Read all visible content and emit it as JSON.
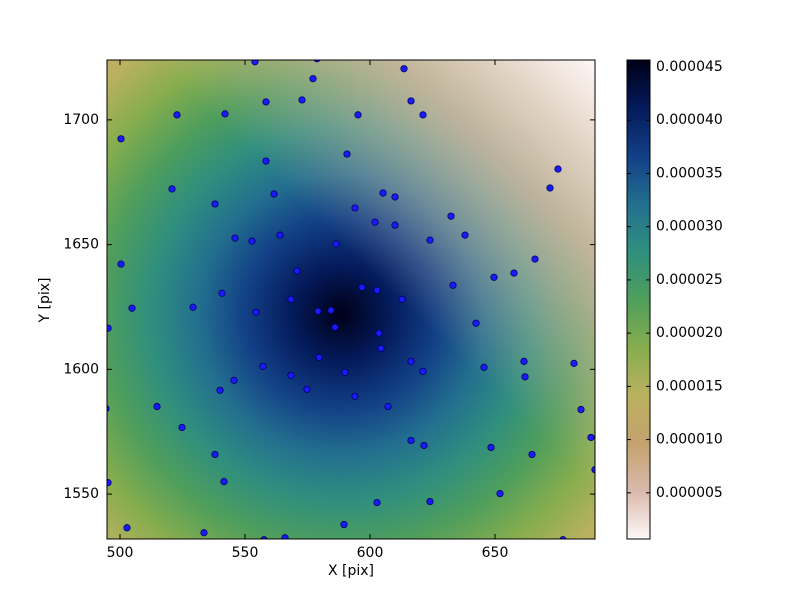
{
  "chart_data": {
    "type": "scatter",
    "x_label": "X [pix]",
    "y_label": "Y [pix]",
    "color": "#1a1aff",
    "edge_color": "#000060",
    "xlim": [
      494.8,
      690
    ],
    "ylim": [
      1532,
      1724
    ],
    "xticks": [
      500,
      550,
      600,
      650
    ],
    "yticks": [
      1550,
      1600,
      1650,
      1700
    ],
    "x": [
      554,
      578.8,
      613.6,
      577.2,
      558.4,
      572.8,
      616.4,
      522.8,
      542,
      595.2,
      621.2,
      500.4,
      590.8,
      558.4,
      675.2,
      520.8,
      672,
      605.2,
      561.6,
      610,
      538,
      594,
      632.4,
      602,
      610,
      564,
      638,
      546,
      624,
      552.8,
      586.4,
      500.4,
      666,
      570.8,
      657.6,
      649.6,
      596.8,
      633.2,
      602.8,
      540.8,
      568.4,
      612.8,
      504.8,
      529.2,
      584.4,
      579.2,
      554.4,
      642.4,
      495.2,
      586,
      603.6,
      604.4,
      579.6,
      616.4,
      661.6,
      681.6,
      557.2,
      645.6,
      621.2,
      590,
      568.4,
      662,
      545.6,
      574.8,
      540,
      594,
      494.4,
      514.8,
      607.2,
      684.4,
      524.8,
      688.4,
      616.4,
      621.6,
      648.4,
      538,
      664.8,
      690,
      495.2,
      541.6,
      652,
      624,
      602.8,
      589.6,
      502.8,
      533.6,
      557.6,
      566,
      677.2
    ],
    "values": [
      1723.3,
      1724.5,
      1720.5,
      1716.5,
      1707.2,
      1708,
      1707.6,
      1702,
      1702.4,
      1702,
      1702,
      1692.4,
      1686.3,
      1683.5,
      1680.3,
      1672.3,
      1672.7,
      1670.7,
      1670.3,
      1669.1,
      1666.3,
      1664.7,
      1661.4,
      1659,
      1657.8,
      1653.8,
      1653.8,
      1652.6,
      1651.8,
      1651.4,
      1650.2,
      1642.2,
      1644.2,
      1639.4,
      1638.6,
      1636.9,
      1632.9,
      1633.7,
      1631.7,
      1630.5,
      1628.1,
      1628.1,
      1624.5,
      1624.9,
      1623.7,
      1623.3,
      1622.9,
      1618.5,
      1616.5,
      1616.9,
      1614.5,
      1608.4,
      1604.8,
      1603.2,
      1603.2,
      1602.4,
      1601.2,
      1600.8,
      1599.2,
      1598.8,
      1597.6,
      1597,
      1595.6,
      1592,
      1591.6,
      1589.2,
      1584.3,
      1585.1,
      1585.1,
      1583.9,
      1576.7,
      1572.7,
      1571.5,
      1569.5,
      1568.7,
      1565.9,
      1565.9,
      1559.8,
      1554.6,
      1555,
      1550.2,
      1547,
      1546.6,
      1537.8,
      1536.5,
      1534.5,
      1531.7,
      1532.5,
      1531.7
    ],
    "colorbar": {
      "lim": [
        6.6e-07,
        4.566e-05
      ],
      "ticks": [
        {
          "value": 5e-06,
          "label": "0.000005"
        },
        {
          "value": 1e-05,
          "label": "0.000010"
        },
        {
          "value": 1.5e-05,
          "label": "0.000015"
        },
        {
          "value": 2e-05,
          "label": "0.000020"
        },
        {
          "value": 2.5e-05,
          "label": "0.000025"
        },
        {
          "value": 3e-05,
          "label": "0.000030"
        },
        {
          "value": 3.5e-05,
          "label": "0.000035"
        },
        {
          "value": 4e-05,
          "label": "0.000040"
        },
        {
          "value": 4.5e-05,
          "label": "0.000045"
        }
      ],
      "colors": [
        "#fdf8f8",
        "#d9b9ac",
        "#c4a26e",
        "#bab15f",
        "#86ad4e",
        "#4f9e5c",
        "#2f8f7e",
        "#236f8f",
        "#123f86",
        "#041a5a",
        "#000018"
      ]
    }
  }
}
